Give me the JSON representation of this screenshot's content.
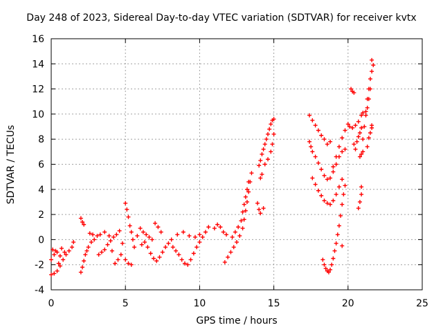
{
  "chart_data": {
    "type": "scatter",
    "title": "Day 248 of 2023, Sidereal Day-to-day VTEC variation (SDTVAR) for receiver kvtx",
    "xlabel": "GPS time / hours",
    "ylabel": "SDTVAR / TECUs",
    "xlim": [
      0,
      25
    ],
    "ylim": [
      -4,
      16
    ],
    "xticks": [
      0,
      5,
      10,
      15,
      20,
      25
    ],
    "yticks": [
      -4,
      -2,
      0,
      2,
      4,
      6,
      8,
      10,
      12,
      14,
      16
    ],
    "grid": true,
    "marker": "+",
    "color": "#ff0000",
    "series": [
      {
        "points": [
          [
            0.0,
            -2.8
          ],
          [
            0.2,
            -2.7
          ],
          [
            0.4,
            -2.5
          ],
          [
            0.6,
            -2.1
          ],
          [
            0.2,
            -1.2
          ],
          [
            0.4,
            -1.0
          ],
          [
            0.6,
            -1.3
          ],
          [
            0.8,
            -1.6
          ],
          [
            1.0,
            -1.2
          ],
          [
            1.2,
            -0.9
          ],
          [
            1.4,
            -0.6
          ],
          [
            1.5,
            -0.2
          ],
          [
            0.1,
            -0.8
          ],
          [
            0.3,
            -0.9
          ],
          [
            0.0,
            -1.6
          ],
          [
            0.5,
            -1.9
          ],
          [
            0.7,
            -0.7
          ],
          [
            0.9,
            -1.0
          ]
        ]
      },
      {
        "points": [
          [
            2.0,
            1.7
          ],
          [
            2.1,
            1.4
          ],
          [
            2.2,
            1.2
          ],
          [
            2.0,
            -2.6
          ],
          [
            2.1,
            -2.2
          ],
          [
            2.2,
            -1.7
          ],
          [
            2.3,
            -1.2
          ],
          [
            2.4,
            -0.9
          ],
          [
            2.5,
            -0.6
          ],
          [
            2.7,
            -0.2
          ],
          [
            2.9,
            0.0
          ],
          [
            3.1,
            0.3
          ],
          [
            2.6,
            0.5
          ],
          [
            2.8,
            0.4
          ]
        ]
      },
      {
        "points": [
          [
            3.2,
            -1.2
          ],
          [
            3.4,
            -1.0
          ],
          [
            3.6,
            -0.8
          ],
          [
            3.8,
            -0.4
          ],
          [
            4.0,
            -0.1
          ],
          [
            3.3,
            0.4
          ],
          [
            3.6,
            0.6
          ],
          [
            3.9,
            0.3
          ],
          [
            4.2,
            0.2
          ],
          [
            4.4,
            0.4
          ],
          [
            4.6,
            0.7
          ],
          [
            4.3,
            -1.9
          ],
          [
            4.5,
            -1.6
          ],
          [
            4.7,
            -1.2
          ],
          [
            4.1,
            -0.9
          ]
        ]
      },
      {
        "points": [
          [
            5.0,
            2.9
          ],
          [
            5.1,
            2.4
          ],
          [
            5.2,
            1.8
          ],
          [
            5.3,
            1.1
          ],
          [
            5.4,
            0.6
          ],
          [
            5.5,
            0.0
          ],
          [
            5.0,
            -1.6
          ],
          [
            5.2,
            -1.9
          ],
          [
            5.4,
            -2.0
          ],
          [
            5.6,
            -0.6
          ],
          [
            4.8,
            -0.3
          ],
          [
            5.8,
            0.3
          ]
        ]
      },
      {
        "points": [
          [
            6.0,
            0.9
          ],
          [
            6.2,
            0.6
          ],
          [
            6.4,
            0.4
          ],
          [
            6.6,
            0.2
          ],
          [
            6.8,
            0.0
          ],
          [
            7.0,
            1.3
          ],
          [
            7.2,
            1.0
          ],
          [
            7.4,
            0.6
          ],
          [
            6.1,
            -0.4
          ],
          [
            6.3,
            -0.2
          ],
          [
            6.5,
            -0.6
          ],
          [
            6.7,
            -1.1
          ],
          [
            6.9,
            -1.5
          ],
          [
            7.1,
            -1.7
          ],
          [
            7.3,
            -1.4
          ],
          [
            7.5,
            -1.0
          ],
          [
            7.7,
            -0.6
          ],
          [
            7.9,
            -0.3
          ],
          [
            8.1,
            0.0
          ]
        ]
      },
      {
        "points": [
          [
            8.2,
            -0.6
          ],
          [
            8.4,
            -0.9
          ],
          [
            8.6,
            -1.2
          ],
          [
            8.8,
            -1.6
          ],
          [
            9.0,
            -1.9
          ],
          [
            9.2,
            -2.0
          ],
          [
            9.4,
            -1.6
          ],
          [
            9.6,
            -1.1
          ],
          [
            9.8,
            -0.6
          ],
          [
            10.0,
            -0.2
          ],
          [
            10.2,
            0.2
          ],
          [
            8.5,
            0.4
          ],
          [
            8.9,
            0.6
          ],
          [
            9.3,
            0.3
          ],
          [
            9.7,
            0.2
          ],
          [
            10.0,
            0.4
          ],
          [
            10.4,
            0.6
          ],
          [
            10.6,
            1.0
          ]
        ]
      },
      {
        "points": [
          [
            11.0,
            0.9
          ],
          [
            11.2,
            1.2
          ],
          [
            11.4,
            1.0
          ],
          [
            11.6,
            0.6
          ],
          [
            11.8,
            0.4
          ],
          [
            11.7,
            -1.8
          ],
          [
            11.9,
            -1.4
          ],
          [
            12.1,
            -1.0
          ],
          [
            12.3,
            -0.6
          ],
          [
            12.5,
            -0.2
          ],
          [
            12.7,
            0.3
          ],
          [
            12.9,
            0.9
          ],
          [
            13.0,
            1.6
          ],
          [
            13.1,
            2.3
          ],
          [
            13.2,
            3.0
          ],
          [
            13.3,
            3.8
          ],
          [
            13.4,
            4.6
          ],
          [
            13.5,
            5.3
          ]
        ]
      },
      {
        "points": [
          [
            12.2,
            0.2
          ],
          [
            12.4,
            0.6
          ],
          [
            12.6,
            1.0
          ],
          [
            12.8,
            1.5
          ],
          [
            12.9,
            2.2
          ],
          [
            13.0,
            2.8
          ],
          [
            13.1,
            3.4
          ],
          [
            13.2,
            4.0
          ],
          [
            13.3,
            4.6
          ]
        ]
      },
      {
        "points": [
          [
            13.9,
            2.9
          ],
          [
            14.0,
            2.4
          ],
          [
            14.1,
            2.1
          ],
          [
            14.3,
            2.5
          ],
          [
            14.0,
            5.9
          ],
          [
            14.1,
            6.3
          ],
          [
            14.2,
            6.8
          ],
          [
            14.3,
            7.2
          ],
          [
            14.4,
            7.6
          ],
          [
            14.5,
            8.0
          ],
          [
            14.6,
            8.4
          ],
          [
            14.7,
            8.8
          ],
          [
            14.8,
            9.2
          ],
          [
            14.9,
            9.5
          ],
          [
            15.0,
            9.6
          ],
          [
            15.0,
            8.4
          ],
          [
            14.9,
            7.6
          ],
          [
            14.8,
            7.0
          ],
          [
            14.6,
            6.4
          ],
          [
            14.4,
            6.0
          ],
          [
            14.2,
            5.2
          ],
          [
            14.1,
            4.9
          ]
        ]
      },
      {
        "points": [
          [
            17.4,
            9.9
          ],
          [
            17.6,
            9.5
          ],
          [
            17.8,
            9.1
          ],
          [
            18.0,
            8.7
          ],
          [
            18.2,
            8.3
          ],
          [
            18.4,
            8.0
          ],
          [
            18.6,
            7.6
          ],
          [
            18.8,
            7.8
          ],
          [
            17.4,
            7.8
          ],
          [
            17.5,
            7.4
          ],
          [
            17.6,
            7.0
          ],
          [
            17.8,
            6.6
          ],
          [
            18.0,
            6.1
          ],
          [
            18.2,
            5.6
          ],
          [
            18.4,
            5.1
          ],
          [
            18.6,
            4.8
          ],
          [
            18.8,
            4.9
          ],
          [
            19.0,
            5.4
          ],
          [
            19.2,
            6.0
          ],
          [
            19.4,
            6.6
          ],
          [
            19.6,
            7.0
          ],
          [
            19.8,
            7.2
          ]
        ]
      },
      {
        "points": [
          [
            17.6,
            4.9
          ],
          [
            17.8,
            4.4
          ],
          [
            18.0,
            3.9
          ],
          [
            18.2,
            3.5
          ],
          [
            18.4,
            3.1
          ],
          [
            18.6,
            2.9
          ],
          [
            18.8,
            2.8
          ],
          [
            19.0,
            3.1
          ],
          [
            19.2,
            3.6
          ],
          [
            19.4,
            4.2
          ],
          [
            19.6,
            4.8
          ],
          [
            19.0,
            5.8
          ],
          [
            19.2,
            6.6
          ],
          [
            19.4,
            7.4
          ],
          [
            19.6,
            8.1
          ],
          [
            19.8,
            8.7
          ],
          [
            20.0,
            9.2
          ]
        ]
      },
      {
        "points": [
          [
            18.3,
            -1.6
          ],
          [
            18.4,
            -2.0
          ],
          [
            18.5,
            -2.3
          ],
          [
            18.6,
            -2.5
          ],
          [
            18.7,
            -2.6
          ],
          [
            18.8,
            -2.4
          ],
          [
            18.9,
            -2.0
          ],
          [
            19.0,
            -1.5
          ],
          [
            19.1,
            -0.9
          ],
          [
            19.2,
            -0.3
          ],
          [
            19.3,
            0.4
          ],
          [
            19.4,
            1.1
          ],
          [
            19.5,
            1.9
          ],
          [
            19.6,
            2.8
          ],
          [
            19.7,
            3.6
          ],
          [
            19.8,
            4.3
          ],
          [
            19.6,
            -0.5
          ]
        ]
      },
      {
        "points": [
          [
            20.2,
            12.0
          ],
          [
            20.3,
            11.8
          ],
          [
            20.4,
            11.7
          ],
          [
            20.1,
            9.0
          ],
          [
            20.3,
            8.9
          ],
          [
            20.5,
            9.1
          ],
          [
            20.7,
            9.4
          ],
          [
            20.9,
            9.9
          ],
          [
            21.0,
            10.1
          ],
          [
            20.6,
            7.8
          ],
          [
            20.7,
            8.2
          ],
          [
            20.8,
            8.5
          ],
          [
            20.9,
            8.9
          ],
          [
            20.5,
            7.2
          ],
          [
            20.4,
            7.6
          ]
        ]
      },
      {
        "points": [
          [
            20.7,
            2.5
          ],
          [
            20.8,
            3.0
          ],
          [
            20.9,
            3.6
          ],
          [
            20.9,
            4.2
          ],
          [
            20.8,
            6.6
          ],
          [
            20.9,
            6.8
          ],
          [
            21.0,
            7.0
          ]
        ]
      },
      {
        "points": [
          [
            21.0,
            8.0
          ],
          [
            21.1,
            9.0
          ],
          [
            21.2,
            10.2
          ],
          [
            21.3,
            11.2
          ],
          [
            21.4,
            12.0
          ],
          [
            21.5,
            12.8
          ],
          [
            21.6,
            13.4
          ],
          [
            21.7,
            13.9
          ],
          [
            21.6,
            14.3
          ],
          [
            21.5,
            12.0
          ],
          [
            21.4,
            11.2
          ],
          [
            21.3,
            10.5
          ],
          [
            21.2,
            9.9
          ],
          [
            21.4,
            8.1
          ],
          [
            21.5,
            8.5
          ],
          [
            21.6,
            8.9
          ],
          [
            21.6,
            9.1
          ],
          [
            21.3,
            7.4
          ]
        ]
      }
    ]
  }
}
